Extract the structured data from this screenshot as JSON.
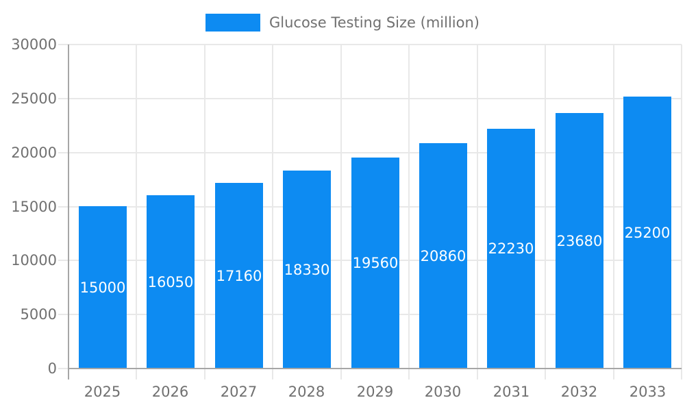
{
  "chart_data": {
    "type": "bar",
    "title": "",
    "legend": "Glucose Testing Size (million)",
    "legend_position": "top",
    "categories": [
      "2025",
      "2026",
      "2027",
      "2028",
      "2029",
      "2030",
      "2031",
      "2032",
      "2033"
    ],
    "values": [
      15000,
      16050,
      17160,
      18330,
      19560,
      20860,
      22230,
      23680,
      25200
    ],
    "xlabel": "",
    "ylabel": "",
    "ylim": [
      0,
      30000
    ],
    "yticks": [
      0,
      5000,
      10000,
      15000,
      20000,
      25000,
      30000
    ],
    "grid": "on",
    "colors": {
      "bar": "#0d8bf2",
      "bar_label_text": "#ffffff",
      "grid_line": "#e8e8e8",
      "axis_line": "#a6a6a6",
      "tick_text": "#707070",
      "legend_text": "#707070",
      "background": "#ffffff"
    }
  }
}
